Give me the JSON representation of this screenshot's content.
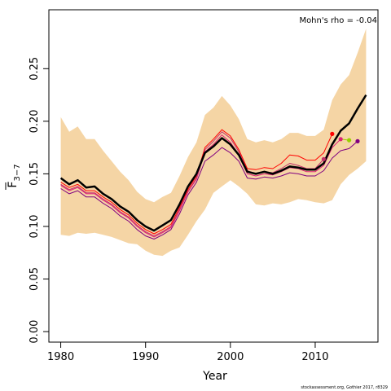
{
  "chart_data": {
    "type": "line",
    "xlabel": "Year",
    "ylabel": "F",
    "ylabel_subscript": "3−7",
    "annotation": "Mohn's rho = -0.04",
    "credit": "stockassessment.org, Gothier 2017, r8329",
    "xlim": [
      1978.6,
      2017.4
    ],
    "ylim": [
      -0.01,
      0.306
    ],
    "x_ticks": [
      1980,
      1990,
      2000,
      2010
    ],
    "y_ticks": [
      0.0,
      0.05,
      0.1,
      0.15,
      0.2,
      0.25
    ],
    "y_tick_labels": [
      "0.00",
      "0.05",
      "0.10",
      "0.15",
      "0.20",
      "0.25"
    ],
    "band": {
      "color": "#f5d5a5",
      "x": [
        1980,
        1981,
        1982,
        1983,
        1984,
        1985,
        1986,
        1987,
        1988,
        1989,
        1990,
        1991,
        1992,
        1993,
        1994,
        1995,
        1996,
        1997,
        1998,
        1999,
        2000,
        2001,
        2002,
        2003,
        2004,
        2005,
        2006,
        2007,
        2008,
        2009,
        2010,
        2011,
        2012,
        2013,
        2014,
        2015,
        2016
      ],
      "upper": [
        0.204,
        0.19,
        0.195,
        0.183,
        0.183,
        0.172,
        0.162,
        0.152,
        0.144,
        0.133,
        0.126,
        0.123,
        0.128,
        0.132,
        0.148,
        0.166,
        0.18,
        0.206,
        0.213,
        0.224,
        0.215,
        0.202,
        0.183,
        0.18,
        0.182,
        0.18,
        0.183,
        0.189,
        0.189,
        0.186,
        0.186,
        0.192,
        0.22,
        0.235,
        0.244,
        0.265,
        0.288
      ],
      "lower": [
        0.092,
        0.091,
        0.094,
        0.093,
        0.094,
        0.092,
        0.09,
        0.087,
        0.084,
        0.083,
        0.077,
        0.073,
        0.072,
        0.077,
        0.08,
        0.092,
        0.105,
        0.116,
        0.132,
        0.138,
        0.144,
        0.138,
        0.131,
        0.121,
        0.12,
        0.122,
        0.121,
        0.123,
        0.126,
        0.125,
        0.123,
        0.122,
        0.125,
        0.14,
        0.149,
        0.155,
        0.162
      ]
    },
    "series": [
      {
        "color": "#000000",
        "x": [
          1980,
          1981,
          1982,
          1983,
          1984,
          1985,
          1986,
          1987,
          1988,
          1989,
          1990,
          1991,
          1992,
          1993,
          1994,
          1995,
          1996,
          1997,
          1998,
          1999,
          2000,
          2001,
          2002,
          2003,
          2004,
          2005,
          2006,
          2007,
          2008,
          2009,
          2010,
          2011,
          2012,
          2013,
          2014,
          2015,
          2016
        ],
        "y": [
          0.146,
          0.14,
          0.144,
          0.137,
          0.138,
          0.131,
          0.126,
          0.119,
          0.114,
          0.106,
          0.1,
          0.096,
          0.101,
          0.106,
          0.121,
          0.138,
          0.15,
          0.17,
          0.176,
          0.184,
          0.178,
          0.168,
          0.152,
          0.15,
          0.152,
          0.15,
          0.153,
          0.157,
          0.156,
          0.154,
          0.154,
          0.16,
          0.178,
          0.191,
          0.198,
          0.212,
          0.225
        ]
      },
      {
        "color": "#ff0000",
        "x": [
          1980,
          1981,
          1982,
          1983,
          1984,
          1985,
          1986,
          1987,
          1988,
          1989,
          1990,
          1991,
          1992,
          1993,
          1994,
          1995,
          1996,
          1997,
          1998,
          1999,
          2000,
          2001,
          2002,
          2003,
          2004,
          2005,
          2006,
          2007,
          2008,
          2009,
          2010,
          2011,
          2012
        ],
        "y": [
          0.142,
          0.137,
          0.14,
          0.134,
          0.134,
          0.128,
          0.123,
          0.116,
          0.111,
          0.103,
          0.097,
          0.093,
          0.097,
          0.102,
          0.118,
          0.135,
          0.148,
          0.175,
          0.183,
          0.192,
          0.186,
          0.173,
          0.155,
          0.154,
          0.156,
          0.155,
          0.16,
          0.168,
          0.167,
          0.163,
          0.163,
          0.17,
          0.188
        ],
        "end_point": {
          "x": 2012,
          "y": 0.188
        }
      },
      {
        "color": "#c0306a",
        "x": [
          1980,
          1981,
          1982,
          1983,
          1984,
          1985,
          1986,
          1987,
          1988,
          1989,
          1990,
          1991,
          1992,
          1993,
          1994,
          1995,
          1996,
          1997,
          1998,
          1999,
          2000,
          2001,
          2002,
          2003,
          2004,
          2005,
          2006,
          2007,
          2008,
          2009,
          2010,
          2011
        ],
        "y": [
          0.14,
          0.135,
          0.138,
          0.132,
          0.132,
          0.126,
          0.121,
          0.114,
          0.109,
          0.101,
          0.095,
          0.091,
          0.095,
          0.1,
          0.116,
          0.133,
          0.146,
          0.173,
          0.181,
          0.19,
          0.184,
          0.171,
          0.153,
          0.15,
          0.152,
          0.151,
          0.155,
          0.16,
          0.158,
          0.155,
          0.155,
          0.164
        ],
        "end_point": {
          "x": 2011,
          "y": 0.164
        }
      },
      {
        "color": "#dd2277",
        "x": [
          1980,
          1981,
          1982,
          1983,
          1984,
          1985,
          1986,
          1987,
          1988,
          1989,
          1990,
          1991,
          1992,
          1993,
          1994,
          1995,
          1996,
          1997,
          1998,
          1999,
          2000,
          2001,
          2002,
          2003,
          2004,
          2005,
          2006,
          2007,
          2008,
          2009,
          2010,
          2011,
          2012,
          2013
        ],
        "y": [
          0.139,
          0.134,
          0.137,
          0.131,
          0.131,
          0.125,
          0.12,
          0.113,
          0.108,
          0.1,
          0.094,
          0.09,
          0.094,
          0.099,
          0.115,
          0.133,
          0.145,
          0.171,
          0.178,
          0.187,
          0.18,
          0.168,
          0.15,
          0.148,
          0.15,
          0.149,
          0.152,
          0.156,
          0.155,
          0.152,
          0.152,
          0.158,
          0.175,
          0.183
        ],
        "end_point": {
          "x": 2013,
          "y": 0.183
        }
      },
      {
        "color": "#9ad000",
        "x": [
          2013,
          2014
        ],
        "y": [
          0.183,
          0.182
        ],
        "end_point": {
          "x": 2014,
          "y": 0.182
        }
      },
      {
        "color": "#800080",
        "x": [
          1980,
          1981,
          1982,
          1983,
          1984,
          1985,
          1986,
          1987,
          1988,
          1989,
          1990,
          1991,
          1992,
          1993,
          1994,
          1995,
          1996,
          1997,
          1998,
          1999,
          2000,
          2001,
          2002,
          2003,
          2004,
          2005,
          2006,
          2007,
          2008,
          2009,
          2010,
          2011,
          2012,
          2013,
          2014,
          2015
        ],
        "y": [
          0.136,
          0.131,
          0.134,
          0.128,
          0.128,
          0.122,
          0.117,
          0.11,
          0.105,
          0.097,
          0.091,
          0.088,
          0.092,
          0.097,
          0.112,
          0.13,
          0.142,
          0.162,
          0.168,
          0.175,
          0.17,
          0.162,
          0.146,
          0.145,
          0.147,
          0.146,
          0.148,
          0.151,
          0.15,
          0.148,
          0.148,
          0.153,
          0.165,
          0.172,
          0.174,
          0.181
        ],
        "end_point": {
          "x": 2015,
          "y": 0.181
        }
      }
    ]
  }
}
